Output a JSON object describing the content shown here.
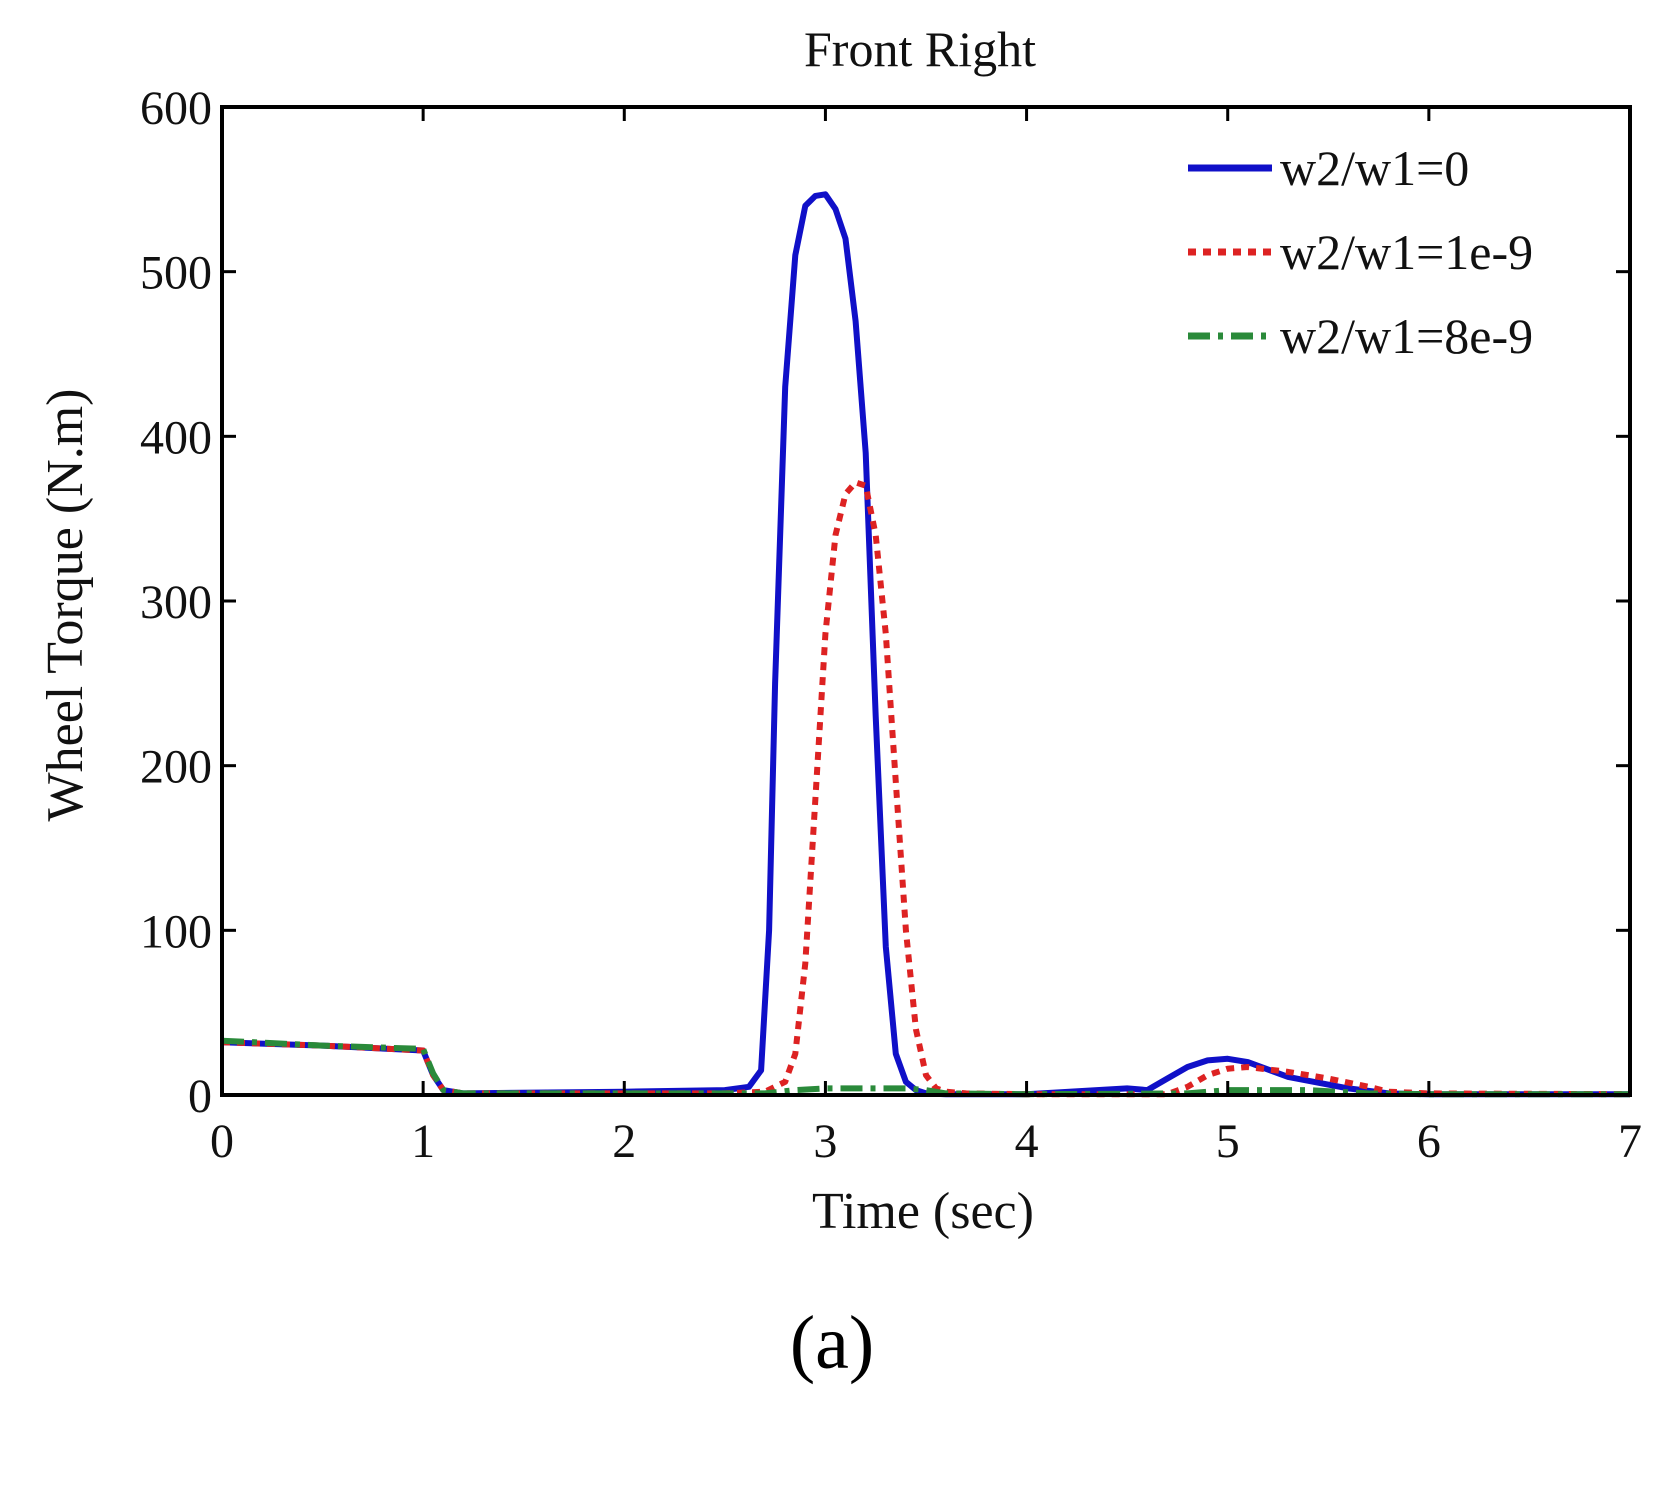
{
  "figure": {
    "caption": "(a)"
  },
  "chart_data": {
    "type": "line",
    "title": "Front Right",
    "xlabel": "Time (sec)",
    "ylabel": "Wheel Torque (N.m)",
    "xlim": [
      0,
      7
    ],
    "ylim": [
      0,
      600
    ],
    "xticks": [
      "0",
      "1",
      "2",
      "3",
      "4",
      "5",
      "6",
      "7"
    ],
    "yticks": [
      "0",
      "100",
      "200",
      "300",
      "400",
      "500",
      "600"
    ],
    "grid": false,
    "legend_position": "top-right",
    "series": [
      {
        "name": "w2/w1=0",
        "color": "#1010c8",
        "style": "solid",
        "x": [
          0,
          0.5,
          1.0,
          1.05,
          1.1,
          1.2,
          2.0,
          2.5,
          2.62,
          2.68,
          2.72,
          2.75,
          2.8,
          2.85,
          2.9,
          2.95,
          3.0,
          3.05,
          3.1,
          3.15,
          3.2,
          3.25,
          3.3,
          3.35,
          3.4,
          3.45,
          3.5,
          3.6,
          3.7,
          4.0,
          4.5,
          4.6,
          4.7,
          4.8,
          4.9,
          5.0,
          5.1,
          5.3,
          5.6,
          5.8,
          6.0,
          7.0
        ],
        "y": [
          32,
          30,
          27,
          12,
          3,
          1,
          2,
          3,
          5,
          15,
          100,
          250,
          430,
          510,
          540,
          546,
          547,
          538,
          520,
          470,
          390,
          230,
          90,
          25,
          8,
          3,
          1,
          0.5,
          0.5,
          0.5,
          4,
          3,
          10,
          17,
          21,
          22,
          20,
          11,
          4,
          1,
          0.5,
          0.5
        ]
      },
      {
        "name": "w2/w1=1e-9",
        "color": "#dd2222",
        "style": "dotted",
        "x": [
          0,
          0.5,
          1.0,
          1.05,
          1.1,
          1.2,
          2.0,
          2.5,
          2.7,
          2.8,
          2.85,
          2.9,
          2.95,
          3.0,
          3.05,
          3.1,
          3.15,
          3.2,
          3.25,
          3.3,
          3.35,
          3.4,
          3.45,
          3.5,
          3.55,
          3.6,
          3.7,
          4.0,
          4.7,
          4.8,
          4.9,
          5.0,
          5.1,
          5.3,
          5.5,
          5.7,
          5.8,
          6.0,
          7.0
        ],
        "y": [
          32,
          30,
          27,
          12,
          3,
          1,
          1,
          1,
          2,
          8,
          25,
          80,
          180,
          280,
          340,
          365,
          372,
          370,
          340,
          280,
          190,
          100,
          40,
          12,
          4,
          2,
          1,
          0.5,
          0.5,
          5,
          12,
          16,
          17,
          14,
          10,
          5,
          2,
          1,
          0.5
        ]
      },
      {
        "name": "w2/w1=8e-9",
        "color": "#2a8a3a",
        "style": "dashdot",
        "x": [
          0,
          0.5,
          1.0,
          1.05,
          1.1,
          1.2,
          2.0,
          2.7,
          2.85,
          3.0,
          3.2,
          3.4,
          3.5,
          3.6,
          4.0,
          4.8,
          5.0,
          5.4,
          5.7,
          6.0,
          7.0
        ],
        "y": [
          33,
          30,
          28,
          13,
          3,
          1,
          1,
          1,
          3,
          4,
          4,
          4,
          3,
          1,
          0.5,
          1,
          3,
          3,
          1,
          0.5,
          0.5
        ]
      }
    ]
  }
}
